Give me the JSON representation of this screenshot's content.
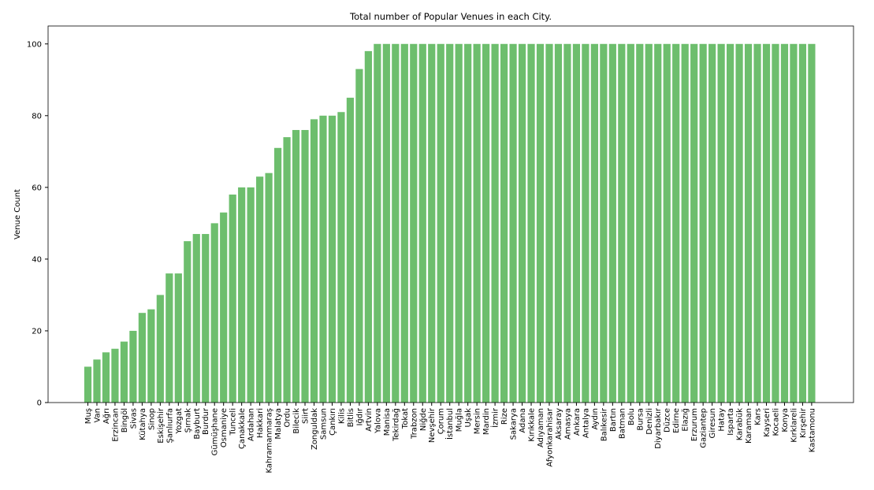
{
  "chart_data": {
    "type": "bar",
    "title": "Total number of Popular Venues in each City.",
    "ylabel": "Venue Count",
    "categories": [
      "Muş",
      "Van",
      "Ağrı",
      "Erzincan",
      "Bingöl",
      "Sivas",
      "Kütahya",
      "Sinop",
      "Eskişehir",
      "Şanlıurfa",
      "Yozgat",
      "Şırnak",
      "Bayburt",
      "Burdur",
      "Gümüşhane",
      "Osmaniye",
      "Tunceli",
      "Çanakkale",
      "Ardahan",
      "Hakkari",
      "Kahramanmaraş",
      "Malatya",
      "Ordu",
      "Bilecik",
      "Siirt",
      "Zonguldak",
      "Samsun",
      "Çankırı",
      "Kilis",
      "Bitlis",
      "Iğdır",
      "Artvin",
      "Yalova",
      "Manisa",
      "Tekirdağ",
      "Tokat",
      "Trabzon",
      "Niğde",
      "Nevşehir",
      "Çorum",
      "İstanbul",
      "Muğla",
      "Uşak",
      "Mersin",
      "Mardin",
      "İzmir",
      "Rize",
      "Sakarya",
      "Adana",
      "Kırıkkale",
      "Adıyaman",
      "Afyonkarahisar",
      "Aksaray",
      "Amasya",
      "Ankara",
      "Antalya",
      "Aydın",
      "Balıkesir",
      "Bartın",
      "Batman",
      "Bolu",
      "Bursa",
      "Denizli",
      "Diyarbakır",
      "Düzce",
      "Edirne",
      "Elazığ",
      "Erzurum",
      "Gaziantep",
      "Giresun",
      "Hatay",
      "Isparta",
      "Karabük",
      "Karaman",
      "Kars",
      "Kayseri",
      "Kocaeli",
      "Konya",
      "Kırklareli",
      "Kırşehir",
      "Kastamonu"
    ],
    "values": [
      10,
      12,
      14,
      15,
      17,
      20,
      25,
      26,
      30,
      36,
      36,
      45,
      47,
      47,
      50,
      53,
      58,
      60,
      60,
      63,
      64,
      71,
      74,
      76,
      76,
      79,
      80,
      80,
      81,
      85,
      93,
      98,
      100,
      100,
      100,
      100,
      100,
      100,
      100,
      100,
      100,
      100,
      100,
      100,
      100,
      100,
      100,
      100,
      100,
      100,
      100,
      100,
      100,
      100,
      100,
      100,
      100,
      100,
      100,
      100,
      100,
      100,
      100,
      100,
      100,
      100,
      100,
      100,
      100,
      100,
      100,
      100,
      100,
      100,
      100,
      100,
      100,
      100,
      100,
      100,
      100
    ],
    "color": "#6dbe6d",
    "ylim": [
      0,
      105
    ],
    "yticks": [
      0,
      20,
      40,
      60,
      80,
      100
    ],
    "grid": false
  }
}
